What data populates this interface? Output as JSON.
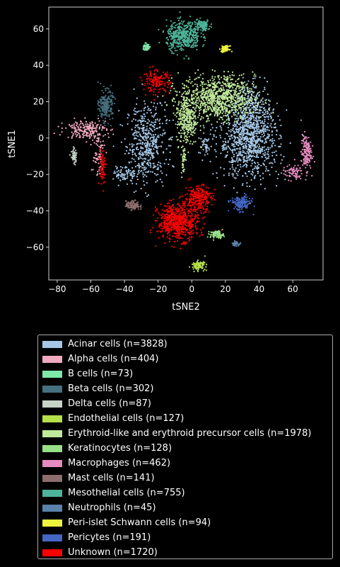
{
  "chart_data": {
    "type": "scatter",
    "title": "",
    "xlabel": "tSNE2",
    "ylabel": "tSNE1",
    "xlim": [
      -85,
      78
    ],
    "ylim": [
      -78,
      72
    ],
    "xticks": [
      -80,
      -60,
      -40,
      -20,
      0,
      20,
      40,
      60
    ],
    "yticks": [
      -60,
      -40,
      -20,
      0,
      20,
      40,
      60
    ],
    "grid": false,
    "legend_position": "below",
    "series": [
      {
        "name": "Acinar cells (n=3828)",
        "color": "#a6c8e6",
        "clusters": [
          {
            "cx": -27,
            "cy": -3,
            "sx": 6,
            "sy": 11,
            "n": 500
          },
          {
            "cx": -40,
            "cy": -20,
            "sx": 3,
            "sy": 2,
            "n": 70
          },
          {
            "cx": 34,
            "cy": -2,
            "sx": 9,
            "sy": 10,
            "n": 900
          },
          {
            "cx": 36,
            "cy": 16,
            "sx": 5,
            "sy": 7,
            "n": 250
          },
          {
            "cx": 8,
            "cy": -5,
            "sx": 2,
            "sy": 3,
            "n": 40
          }
        ]
      },
      {
        "name": "Alpha cells (n=404)",
        "color": "#f2a9c0",
        "clusters": [
          {
            "cx": -63,
            "cy": 5,
            "sx": 6,
            "sy": 2.5,
            "n": 200
          },
          {
            "cx": -56,
            "cy": -8,
            "sx": 2,
            "sy": 7,
            "n": 70
          }
        ]
      },
      {
        "name": "B cells (n=73)",
        "color": "#7fe8a8",
        "clusters": [
          {
            "cx": -27,
            "cy": 50,
            "sx": 1,
            "sy": 1,
            "n": 60
          }
        ]
      },
      {
        "name": "Beta cells (n=302)",
        "color": "#46707f",
        "clusters": [
          {
            "cx": -51,
            "cy": 18,
            "sx": 2,
            "sy": 4,
            "n": 220
          }
        ]
      },
      {
        "name": "Delta cells (n=87)",
        "color": "#c6d4c8",
        "clusters": [
          {
            "cx": -70,
            "cy": -10,
            "sx": 0.8,
            "sy": 2,
            "n": 60
          }
        ]
      },
      {
        "name": "Endothelial cells (n=127)",
        "color": "#b6e04a",
        "clusters": [
          {
            "cx": 4,
            "cy": -70,
            "sx": 2,
            "sy": 1.2,
            "n": 100
          }
        ]
      },
      {
        "name": "Erythroid-like and erythroid precursor cells (n=1978)",
        "color": "#bfe89a",
        "clusters": [
          {
            "cx": 15,
            "cy": 22,
            "sx": 11,
            "sy": 6,
            "n": 900
          },
          {
            "cx": -3,
            "cy": 10,
            "sx": 3,
            "sy": 7,
            "n": 300
          },
          {
            "cx": -5,
            "cy": -12,
            "sx": 0.6,
            "sy": 4,
            "n": 40
          }
        ]
      },
      {
        "name": "Keratinocytes (n=128)",
        "color": "#98e088",
        "clusters": [
          {
            "cx": 15,
            "cy": -53,
            "sx": 2,
            "sy": 1,
            "n": 100
          }
        ]
      },
      {
        "name": "Macrophages (n=462)",
        "color": "#e58bbf",
        "clusters": [
          {
            "cx": 68,
            "cy": -8,
            "sx": 1.5,
            "sy": 5,
            "n": 160
          },
          {
            "cx": 60,
            "cy": -19,
            "sx": 3,
            "sy": 2,
            "n": 80
          }
        ]
      },
      {
        "name": "Mast cells (n=141)",
        "color": "#8c6e6e",
        "clusters": [
          {
            "cx": -35,
            "cy": -37,
            "sx": 2,
            "sy": 1.2,
            "n": 120
          }
        ]
      },
      {
        "name": "Mesothelial cells (n=755)",
        "color": "#4db399",
        "clusters": [
          {
            "cx": -5,
            "cy": 56,
            "sx": 5,
            "sy": 4,
            "n": 450
          },
          {
            "cx": 6,
            "cy": 62,
            "sx": 2.5,
            "sy": 1.5,
            "n": 120
          }
        ]
      },
      {
        "name": "Neutrophils (n=45)",
        "color": "#5a82aa",
        "clusters": [
          {
            "cx": 26,
            "cy": -58,
            "sx": 1,
            "sy": 0.6,
            "n": 40
          }
        ]
      },
      {
        "name": "Peri-islet Schwann cells (n=94)",
        "color": "#ecf53c",
        "clusters": [
          {
            "cx": 20,
            "cy": 49,
            "sx": 1.2,
            "sy": 0.8,
            "n": 80
          }
        ]
      },
      {
        "name": "Pericytes (n=191)",
        "color": "#4466c4",
        "clusters": [
          {
            "cx": 29,
            "cy": -36,
            "sx": 3,
            "sy": 2,
            "n": 160
          }
        ]
      },
      {
        "name": "Unknown (n=1720)",
        "color": "#ff0000",
        "clusters": [
          {
            "cx": -8,
            "cy": -46,
            "sx": 6,
            "sy": 5,
            "n": 600
          },
          {
            "cx": 4,
            "cy": -33,
            "sx": 4,
            "sy": 3.5,
            "n": 250
          },
          {
            "cx": -21,
            "cy": 31,
            "sx": 4,
            "sy": 3,
            "n": 150
          },
          {
            "cx": -53,
            "cy": -16,
            "sx": 1,
            "sy": 5,
            "n": 70
          }
        ]
      }
    ]
  }
}
